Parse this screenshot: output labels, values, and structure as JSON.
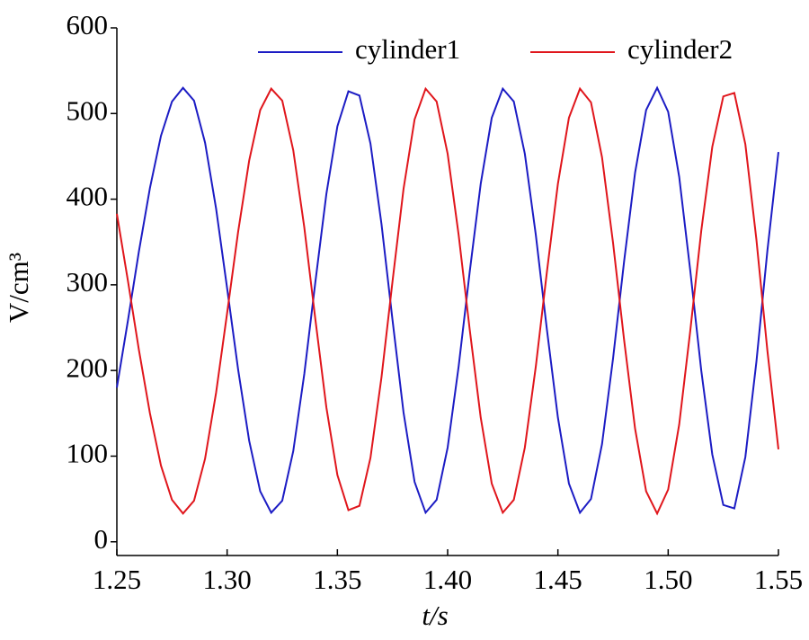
{
  "chart_data": {
    "type": "line",
    "xlabel": "t/s",
    "ylabel": "V/cm³",
    "x": [
      1.25,
      1.255,
      1.26,
      1.265,
      1.27,
      1.275,
      1.28,
      1.285,
      1.29,
      1.295,
      1.3,
      1.305,
      1.31,
      1.315,
      1.32,
      1.325,
      1.33,
      1.335,
      1.34,
      1.345,
      1.35,
      1.355,
      1.36,
      1.365,
      1.37,
      1.375,
      1.38,
      1.385,
      1.39,
      1.395,
      1.4,
      1.405,
      1.41,
      1.415,
      1.42,
      1.425,
      1.43,
      1.435,
      1.44,
      1.445,
      1.45,
      1.455,
      1.46,
      1.465,
      1.47,
      1.475,
      1.48,
      1.485,
      1.49,
      1.495,
      1.5,
      1.505,
      1.51,
      1.515,
      1.52,
      1.525,
      1.53,
      1.535,
      1.54,
      1.545,
      1.55
    ],
    "series": [
      {
        "name": "cylinder1",
        "color": "#1c1cc4",
        "values": [
          180,
          258,
          339,
          413,
          474,
          514,
          530,
          515,
          466,
          389,
          296,
          201,
          118,
          59,
          34,
          48,
          106,
          196,
          303,
          406,
          485,
          526,
          521,
          465,
          371,
          259,
          151,
          70,
          34,
          49,
          110,
          205,
          315,
          418,
          495,
          529,
          514,
          453,
          358,
          248,
          145,
          68,
          34,
          50,
          114,
          214,
          327,
          431,
          504,
          530,
          502,
          426,
          317,
          200,
          102,
          43,
          39,
          99,
          210,
          340,
          455
        ]
      },
      {
        "name": "cylinder2",
        "color": "#e0161c",
        "values": [
          383,
          305,
          224,
          150,
          89,
          49,
          33,
          48,
          97,
          174,
          267,
          362,
          445,
          504,
          529,
          515,
          457,
          367,
          260,
          157,
          78,
          37,
          42,
          98,
          192,
          304,
          412,
          493,
          529,
          514,
          453,
          358,
          248,
          145,
          68,
          34,
          49,
          110,
          205,
          315,
          418,
          495,
          529,
          513,
          449,
          349,
          236,
          132,
          59,
          33,
          61,
          137,
          246,
          363,
          461,
          520,
          524,
          464,
          353,
          223,
          108
        ]
      }
    ],
    "xlim": [
      1.25,
      1.55
    ],
    "xticks": [
      1.25,
      {
        "value": 1.3,
        "label": "1.30"
      },
      1.35,
      {
        "value": 1.4,
        "label": "1.40"
      },
      1.45,
      {
        "value": 1.5,
        "label": "1.50"
      },
      1.55
    ],
    "ylim": [
      -16,
      600
    ],
    "yticks": [
      0,
      100,
      200,
      300,
      400,
      500,
      600
    ],
    "legend": "upper right"
  }
}
